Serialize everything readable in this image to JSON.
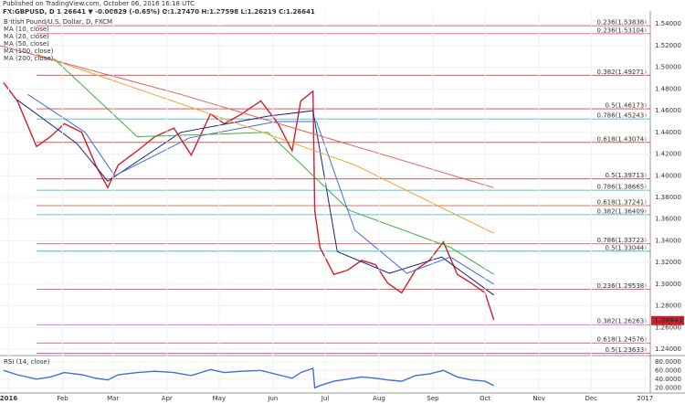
{
  "header": {
    "published": "Published on TradingView.com, October 06, 2016 16:18 UTC",
    "symbol_line": "FX:GBPUSD, D 1.26641 ▼ -0.00829 (-0.65%) O:1.27470 H:1.27598 L:1.26219 C:1.26641"
  },
  "chart_data": [
    {
      "type": "line",
      "title": "British Pound/U.S. Dollar, D, FXCM",
      "xlim": [
        -4,
        370
      ],
      "ylim": [
        1.235,
        1.552
      ],
      "yticks": [
        {
          "value": 1.24,
          "label": "1.24000"
        },
        {
          "value": 1.26,
          "label": "1.26000"
        },
        {
          "value": 1.28,
          "label": "1.28000"
        },
        {
          "value": 1.3,
          "label": "1.30000"
        },
        {
          "value": 1.32,
          "label": "1.32000"
        },
        {
          "value": 1.34,
          "label": "1.34000"
        },
        {
          "value": 1.36,
          "label": "1.36000"
        },
        {
          "value": 1.38,
          "label": "1.38000"
        },
        {
          "value": 1.4,
          "label": "1.40000"
        },
        {
          "value": 1.42,
          "label": "1.42000"
        },
        {
          "value": 1.44,
          "label": "1.44000"
        },
        {
          "value": 1.46,
          "label": "1.46000"
        },
        {
          "value": 1.48,
          "label": "1.48000"
        },
        {
          "value": 1.5,
          "label": "1.50000"
        },
        {
          "value": 1.52,
          "label": "1.52000"
        },
        {
          "value": 1.54,
          "label": "1.54000"
        }
      ],
      "series": [
        {
          "name": "British Pound/U.S. Dollar, D, FXCM",
          "color": "#d0202a",
          "x": [
            -2,
            6,
            17,
            25,
            33,
            43,
            51,
            58,
            64,
            75,
            85,
            96,
            106,
            117,
            125,
            135,
            146,
            156,
            164,
            169,
            176,
            177,
            180,
            188,
            196,
            204,
            212,
            219,
            227,
            235,
            243,
            251,
            259,
            267,
            275,
            280
          ],
          "values": [
            1.486,
            1.469,
            1.427,
            1.436,
            1.448,
            1.44,
            1.41,
            1.389,
            1.41,
            1.423,
            1.436,
            1.444,
            1.419,
            1.457,
            1.448,
            1.457,
            1.469,
            1.448,
            1.423,
            1.469,
            1.478,
            1.368,
            1.334,
            1.309,
            1.313,
            1.322,
            1.318,
            1.301,
            1.292,
            1.313,
            1.322,
            1.339,
            1.309,
            1.301,
            1.292,
            1.267
          ]
        },
        {
          "name": "MA (10, close)",
          "color": "#1a237e",
          "x": [
            6,
            40,
            58,
            100,
            150,
            176,
            190,
            220,
            250,
            280
          ],
          "values": [
            1.47,
            1.43,
            1.395,
            1.44,
            1.455,
            1.46,
            1.33,
            1.31,
            1.325,
            1.29
          ]
        },
        {
          "name": "MA (20, close)",
          "color": "#3f6fd8",
          "x": [
            12,
            45,
            62,
            105,
            155,
            178,
            200,
            230,
            255,
            280
          ],
          "values": [
            1.475,
            1.44,
            1.4,
            1.435,
            1.45,
            1.45,
            1.35,
            1.31,
            1.325,
            1.3
          ]
        },
        {
          "name": "MA (50, close)",
          "color": "#3cb043",
          "x": [
            27,
            75,
            150,
            197,
            255,
            280
          ],
          "values": [
            1.508,
            1.436,
            1.44,
            1.368,
            1.334,
            1.309
          ]
        },
        {
          "name": "MA (100, close)",
          "color": "#f0a030",
          "x": [
            17,
            117,
            200,
            280
          ],
          "values": [
            1.512,
            1.457,
            1.41,
            1.347
          ]
        },
        {
          "name": "MA (200, close)",
          "color": "#e06060",
          "x": [
            -4,
            100,
            280
          ],
          "values": [
            1.52,
            1.475,
            1.389
          ]
        }
      ],
      "levels": [
        {
          "label": "0.236(1.53838)",
          "value": 1.53838,
          "color": "#d04040"
        },
        {
          "label": "0.236(1.53104)",
          "value": 1.53104,
          "color": "#d04040"
        },
        {
          "label": "0.382(1.49271)",
          "value": 1.49271,
          "color": "#d04040"
        },
        {
          "label": "0.5(1.46173)",
          "value": 1.46173,
          "color": "#d04040"
        },
        {
          "label": "0.786(1.45243)",
          "value": 1.45243,
          "color": "#20b0c0"
        },
        {
          "label": "0.618(1.43074)",
          "value": 1.43074,
          "color": "#d04040"
        },
        {
          "label": "0.5(1.39713)",
          "value": 1.39713,
          "color": "#d04040"
        },
        {
          "label": "0.786(1.38665)",
          "value": 1.38665,
          "color": "#20b0c0"
        },
        {
          "label": "0.618(1.37241)",
          "value": 1.37241,
          "color": "#d04040"
        },
        {
          "label": "0.382(1.36409)",
          "value": 1.36409,
          "color": "#20b0c0"
        },
        {
          "label": "0.786(1.33723)",
          "value": 1.33723,
          "color": "#d04040"
        },
        {
          "label": "0.5(1.33044)",
          "value": 1.33044,
          "color": "#20b0c0"
        },
        {
          "label": "0.236(1.29538)",
          "value": 1.29538,
          "color": "#d04040"
        },
        {
          "label": "0.382(1.26263)",
          "value": 1.26263,
          "color": "#e040c0"
        },
        {
          "label": "0.618(1.24576)",
          "value": 1.24576,
          "color": "#d04040"
        },
        {
          "label": "0.5(1.23633)",
          "value": 1.23633,
          "color": "#e040c0"
        }
      ],
      "last_price": {
        "value": 1.26641,
        "label": "1.26641"
      }
    },
    {
      "type": "line",
      "title": "RSI (14, close)",
      "xlim": [
        -4,
        370
      ],
      "ylim": [
        10,
        90
      ],
      "yticks": [
        {
          "value": 20,
          "label": "20.0000"
        },
        {
          "value": 40,
          "label": "40.0000"
        },
        {
          "value": 60,
          "label": "60.0000"
        },
        {
          "value": 80,
          "label": "80.0000"
        }
      ],
      "xticks": [
        {
          "value": 1,
          "label": "2016"
        },
        {
          "value": 32,
          "label": "Feb"
        },
        {
          "value": 61,
          "label": "Mar"
        },
        {
          "value": 92,
          "label": "Apr"
        },
        {
          "value": 122,
          "label": "May"
        },
        {
          "value": 153,
          "label": "Jun"
        },
        {
          "value": 183,
          "label": "Jul"
        },
        {
          "value": 214,
          "label": "Aug"
        },
        {
          "value": 245,
          "label": "Sep"
        },
        {
          "value": 275,
          "label": "Oct"
        },
        {
          "value": 306,
          "label": "Nov"
        },
        {
          "value": 336,
          "label": "Dec"
        },
        {
          "value": 367,
          "label": "2017"
        }
      ],
      "series": [
        {
          "name": "RSI (14, close)",
          "color": "#3f6fd8",
          "x": [
            -2,
            6,
            17,
            25,
            33,
            43,
            51,
            58,
            64,
            75,
            85,
            96,
            106,
            117,
            125,
            135,
            146,
            156,
            164,
            169,
            176,
            177,
            180,
            188,
            196,
            204,
            212,
            219,
            227,
            235,
            243,
            251,
            259,
            267,
            275,
            280
          ],
          "values": [
            60,
            50,
            40,
            45,
            55,
            50,
            42,
            38,
            50,
            55,
            58,
            55,
            48,
            62,
            55,
            58,
            60,
            50,
            42,
            55,
            65,
            20,
            25,
            35,
            40,
            45,
            42,
            38,
            35,
            48,
            52,
            60,
            45,
            38,
            35,
            25
          ]
        }
      ]
    }
  ]
}
